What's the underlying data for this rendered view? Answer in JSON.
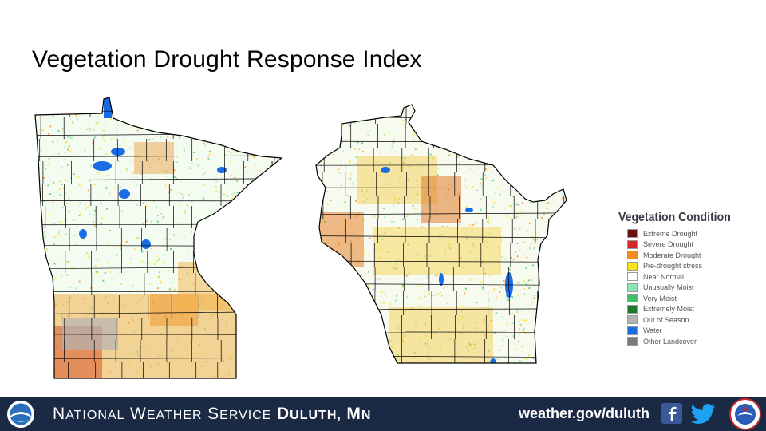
{
  "title": "Vegetation Drought Response Index",
  "legend": {
    "title": "Vegetation Condition",
    "items": [
      {
        "label": "Extreme Drought",
        "color": "#6b0d0d"
      },
      {
        "label": "Severe Drought",
        "color": "#d7262b"
      },
      {
        "label": "Moderate Drought",
        "color": "#f28b1b"
      },
      {
        "label": "Pre-drought stress",
        "color": "#f9e41b"
      },
      {
        "label": "Near Normal",
        "color": "#ffffff"
      },
      {
        "label": "Unusually Moist",
        "color": "#8ee6b4"
      },
      {
        "label": "Very Moist",
        "color": "#3fbf6c"
      },
      {
        "label": "Extremely Moist",
        "color": "#1f7a2b"
      },
      {
        "label": "Out of Season",
        "color": "#b3b3b3"
      },
      {
        "label": "Water",
        "color": "#1a6be6"
      },
      {
        "label": "Other Landcover",
        "color": "#7a7a7a"
      }
    ]
  },
  "footer": {
    "org_prefix": "National Weather Service",
    "office": "Duluth, MN",
    "url": "weather.gov/duluth"
  },
  "icons": {
    "noaa": "noaa-logo-icon",
    "facebook": "facebook-icon",
    "twitter": "twitter-icon",
    "nws": "nws-logo-icon"
  },
  "colors": {
    "footer_bg": "#1b2a44",
    "drought_moderate": "#f28b1b",
    "predrought": "#f9e41b",
    "moist": "#8ee6b4",
    "water": "#1a6be6"
  }
}
